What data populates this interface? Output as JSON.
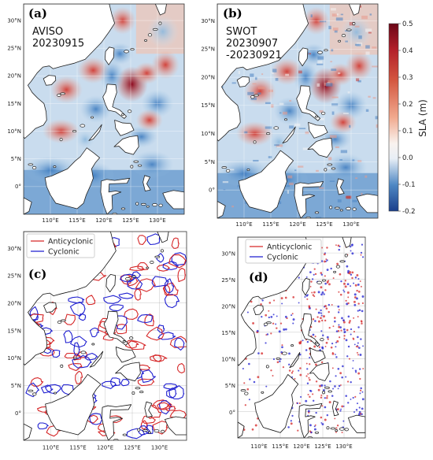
{
  "panels": [
    {
      "id": "a",
      "label": "(a)",
      "annotation": [
        "AVISO",
        "20230915"
      ]
    },
    {
      "id": "b",
      "label": "(b)",
      "annotation": [
        "SWOT",
        "20230907",
        "-20230921"
      ]
    },
    {
      "id": "c",
      "label": "(c)",
      "legend": [
        "Anticyclonic",
        "Cyclonic"
      ]
    },
    {
      "id": "d",
      "label": "(d)",
      "legend": [
        "Anticyclonic",
        "Cyclonic"
      ]
    }
  ],
  "axes": {
    "lon_ticks": [
      "110°E",
      "115°E",
      "120°E",
      "125°E",
      "130°E"
    ],
    "lat_ticks": [
      "30°N",
      "25°N",
      "20°N",
      "15°N",
      "10°N",
      "5°N",
      "0°"
    ]
  },
  "colorbar": {
    "title": "SLA (m)",
    "ticks": [
      "0.5",
      "0.4",
      "0.3",
      "0.2",
      "0.1",
      "0.0",
      "-0.1",
      "-0.2"
    ],
    "range": [
      -0.2,
      0.5
    ]
  },
  "colors": {
    "anticyclonic": "#d62728",
    "cyclonic": "#1f1fd0",
    "land": "#ffffff",
    "coast": "#111111"
  }
}
